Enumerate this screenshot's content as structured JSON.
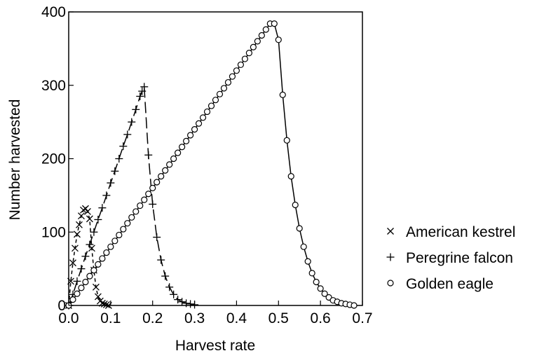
{
  "chart_data": {
    "type": "line",
    "title": "",
    "xlabel": "Harvest rate",
    "ylabel": "Number harvested",
    "xlim": [
      0.0,
      0.7
    ],
    "ylim": [
      0,
      400
    ],
    "xticks": [
      "0.0",
      "0.1",
      "0.2",
      "0.3",
      "0.4",
      "0.5",
      "0.6",
      "0.7"
    ],
    "yticks": [
      "0",
      "100",
      "200",
      "300",
      "400"
    ],
    "grid": false,
    "legend_position": "bottom-right-outside",
    "series": [
      {
        "name": "American kestrel",
        "marker": "x",
        "dash": "5,4",
        "color": "#000000",
        "x": [
          0.0,
          0.005,
          0.01,
          0.015,
          0.02,
          0.025,
          0.03,
          0.035,
          0.04,
          0.045,
          0.05,
          0.055,
          0.06,
          0.065,
          0.07,
          0.075,
          0.08,
          0.085,
          0.09,
          0.095
        ],
        "y": [
          0,
          33,
          58,
          78,
          97,
          110,
          122,
          130,
          132,
          128,
          118,
          78,
          48,
          25,
          12,
          6,
          3,
          2,
          1,
          0
        ]
      },
      {
        "name": "Peregrine falcon",
        "marker": "+",
        "dash": "16,6",
        "color": "#000000",
        "x": [
          0.0,
          0.01,
          0.02,
          0.03,
          0.04,
          0.05,
          0.06,
          0.07,
          0.08,
          0.09,
          0.1,
          0.11,
          0.12,
          0.13,
          0.14,
          0.15,
          0.16,
          0.17,
          0.175,
          0.18,
          0.19,
          0.2,
          0.21,
          0.22,
          0.23,
          0.24,
          0.25,
          0.26,
          0.27,
          0.28,
          0.29,
          0.3
        ],
        "y": [
          0,
          15,
          33,
          50,
          67,
          83,
          100,
          117,
          133,
          150,
          167,
          183,
          200,
          217,
          233,
          250,
          267,
          285,
          292,
          298,
          205,
          138,
          93,
          62,
          40,
          25,
          15,
          8,
          5,
          3,
          2,
          1
        ]
      },
      {
        "name": "Golden eagle",
        "marker": "o",
        "dash": "",
        "color": "#000000",
        "x": [
          0.0,
          0.01,
          0.02,
          0.03,
          0.04,
          0.05,
          0.06,
          0.07,
          0.08,
          0.09,
          0.1,
          0.11,
          0.12,
          0.13,
          0.14,
          0.15,
          0.16,
          0.17,
          0.18,
          0.19,
          0.2,
          0.21,
          0.22,
          0.23,
          0.24,
          0.25,
          0.26,
          0.27,
          0.28,
          0.29,
          0.3,
          0.31,
          0.32,
          0.33,
          0.34,
          0.35,
          0.36,
          0.37,
          0.38,
          0.39,
          0.4,
          0.41,
          0.42,
          0.43,
          0.44,
          0.45,
          0.46,
          0.47,
          0.48,
          0.49,
          0.5,
          0.51,
          0.52,
          0.53,
          0.54,
          0.55,
          0.56,
          0.57,
          0.58,
          0.59,
          0.6,
          0.61,
          0.62,
          0.63,
          0.64,
          0.65,
          0.66,
          0.67,
          0.68
        ],
        "y": [
          0,
          8,
          16,
          24,
          32,
          40,
          48,
          56,
          64,
          72,
          80,
          88,
          96,
          104,
          112,
          120,
          128,
          136,
          144,
          152,
          160,
          168,
          176,
          184,
          192,
          200,
          208,
          216,
          224,
          232,
          240,
          248,
          256,
          264,
          272,
          280,
          288,
          296,
          304,
          312,
          320,
          328,
          336,
          344,
          352,
          360,
          368,
          376,
          384,
          384,
          362,
          287,
          225,
          176,
          137,
          105,
          80,
          60,
          44,
          32,
          23,
          16,
          11,
          7,
          5,
          3,
          2,
          1,
          0
        ]
      }
    ]
  }
}
